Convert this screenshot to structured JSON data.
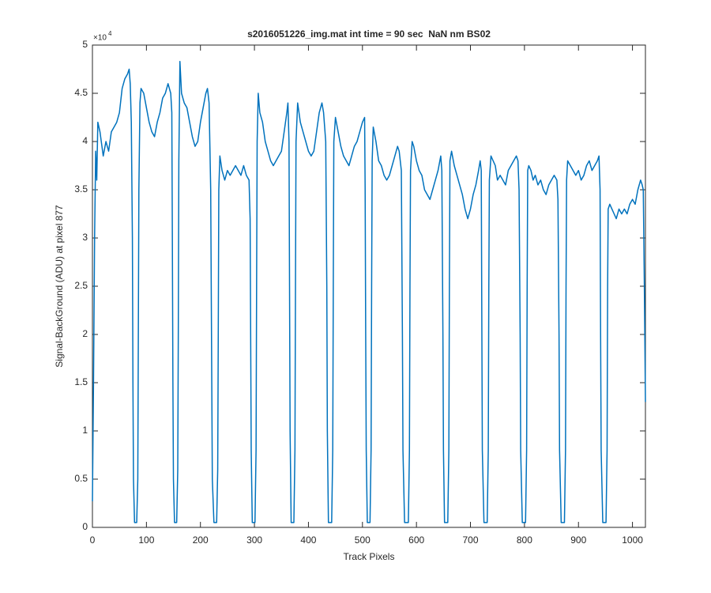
{
  "chart_data": {
    "type": "line",
    "title": "s2016051226_img.mat int time = 90 sec  NaN nm BS02",
    "x_label": "Track Pixels",
    "y_label": "Signal-BackGround (ADU) at pixel 877",
    "y_multiplier_base": "×10",
    "y_multiplier_exponent": "4",
    "xlim": [
      0,
      1024
    ],
    "ylim": [
      0,
      5
    ],
    "xticks": [
      0,
      100,
      200,
      300,
      400,
      500,
      600,
      700,
      800,
      900,
      1000
    ],
    "yticks": [
      0,
      0.5,
      1,
      1.5,
      2,
      2.5,
      3,
      3.5,
      4,
      4.5,
      5
    ],
    "grid": false,
    "series": [
      {
        "color": "#0072bd",
        "x": [
          0,
          2,
          4,
          6,
          8,
          10,
          14,
          20,
          25,
          30,
          35,
          40,
          45,
          50,
          55,
          60,
          65,
          68,
          70,
          72,
          74,
          75,
          76,
          78,
          82,
          84,
          85,
          86,
          88,
          90,
          95,
          100,
          105,
          110,
          115,
          120,
          125,
          130,
          135,
          140,
          145,
          147,
          148,
          149,
          150,
          152,
          156,
          158,
          159,
          160,
          162,
          165,
          170,
          175,
          180,
          185,
          190,
          195,
          200,
          205,
          210,
          213,
          216,
          219,
          221,
          222,
          225,
          230,
          232,
          233,
          234,
          236,
          240,
          245,
          250,
          255,
          260,
          265,
          270,
          275,
          280,
          285,
          290,
          292,
          293,
          294,
          296,
          301,
          303,
          304,
          305,
          307,
          310,
          315,
          320,
          325,
          330,
          335,
          340,
          345,
          350,
          355,
          360,
          362,
          364,
          365,
          366,
          368,
          373,
          375,
          376,
          377,
          380,
          385,
          390,
          395,
          400,
          405,
          410,
          415,
          420,
          425,
          428,
          432,
          434,
          435,
          437,
          443,
          445,
          446,
          447,
          450,
          455,
          460,
          465,
          470,
          475,
          480,
          485,
          490,
          495,
          500,
          504,
          505,
          506,
          507,
          509,
          514,
          516,
          517,
          518,
          520,
          525,
          530,
          535,
          540,
          545,
          550,
          555,
          560,
          565,
          568,
          572,
          574,
          575,
          578,
          585,
          587,
          588,
          589,
          592,
          595,
          600,
          605,
          610,
          615,
          620,
          625,
          630,
          635,
          640,
          645,
          647,
          649,
          650,
          652,
          658,
          660,
          661,
          662,
          665,
          670,
          675,
          680,
          685,
          690,
          695,
          700,
          705,
          710,
          715,
          718,
          720,
          721,
          722,
          725,
          731,
          733,
          734,
          735,
          738,
          742,
          746,
          750,
          755,
          760,
          765,
          770,
          775,
          780,
          785,
          788,
          790,
          792,
          793,
          796,
          802,
          804,
          805,
          806,
          808,
          812,
          816,
          820,
          825,
          830,
          835,
          840,
          845,
          850,
          855,
          860,
          862,
          864,
          865,
          868,
          874,
          876,
          877,
          878,
          880,
          885,
          890,
          895,
          900,
          905,
          910,
          915,
          920,
          925,
          930,
          935,
          938,
          940,
          941,
          942,
          945,
          951,
          953,
          954,
          955,
          958,
          962,
          966,
          970,
          975,
          980,
          985,
          990,
          995,
          1000,
          1005,
          1010,
          1015,
          1018,
          1020,
          1022,
          1024
        ],
        "values": [
          0.27,
          1.5,
          3.0,
          3.9,
          3.6,
          4.2,
          4.1,
          3.85,
          4.0,
          3.9,
          4.1,
          4.15,
          4.2,
          4.3,
          4.55,
          4.65,
          4.7,
          4.75,
          4.6,
          4.2,
          3.0,
          1.5,
          0.5,
          0.05,
          0.05,
          0.5,
          2.0,
          3.5,
          4.4,
          4.55,
          4.5,
          4.35,
          4.2,
          4.1,
          4.05,
          4.2,
          4.3,
          4.45,
          4.5,
          4.6,
          4.5,
          4.3,
          3.0,
          1.5,
          0.5,
          0.05,
          0.05,
          0.6,
          2.0,
          3.8,
          4.83,
          4.5,
          4.4,
          4.35,
          4.2,
          4.05,
          3.95,
          4.0,
          4.2,
          4.35,
          4.5,
          4.55,
          4.4,
          3.5,
          1.5,
          0.5,
          0.05,
          0.05,
          0.6,
          2.0,
          3.5,
          3.85,
          3.7,
          3.6,
          3.7,
          3.65,
          3.7,
          3.75,
          3.7,
          3.65,
          3.75,
          3.65,
          3.6,
          3.2,
          2.0,
          0.8,
          0.05,
          0.05,
          0.8,
          2.5,
          4.0,
          4.5,
          4.3,
          4.2,
          4.0,
          3.9,
          3.8,
          3.75,
          3.8,
          3.85,
          3.9,
          4.1,
          4.3,
          4.4,
          4.0,
          2.5,
          1.0,
          0.05,
          0.05,
          0.8,
          2.5,
          4.0,
          4.4,
          4.2,
          4.1,
          4.0,
          3.9,
          3.85,
          3.9,
          4.1,
          4.3,
          4.4,
          4.3,
          4.0,
          2.5,
          1.0,
          0.05,
          0.05,
          0.8,
          2.5,
          4.0,
          4.25,
          4.1,
          3.95,
          3.85,
          3.8,
          3.75,
          3.85,
          3.95,
          4.0,
          4.1,
          4.2,
          4.25,
          3.5,
          2.0,
          0.8,
          0.05,
          0.05,
          0.8,
          2.5,
          3.8,
          4.15,
          4.0,
          3.8,
          3.75,
          3.65,
          3.6,
          3.65,
          3.75,
          3.85,
          3.95,
          3.9,
          3.7,
          2.0,
          0.8,
          0.05,
          0.05,
          0.8,
          2.5,
          3.7,
          4.0,
          3.95,
          3.8,
          3.7,
          3.65,
          3.5,
          3.45,
          3.4,
          3.5,
          3.6,
          3.7,
          3.85,
          3.7,
          2.0,
          0.8,
          0.05,
          0.05,
          0.8,
          2.5,
          3.8,
          3.9,
          3.75,
          3.65,
          3.55,
          3.45,
          3.3,
          3.2,
          3.3,
          3.45,
          3.55,
          3.7,
          3.8,
          3.7,
          2.2,
          0.8,
          0.05,
          0.05,
          0.8,
          2.5,
          3.6,
          3.85,
          3.8,
          3.75,
          3.6,
          3.65,
          3.6,
          3.55,
          3.7,
          3.75,
          3.8,
          3.85,
          3.8,
          3.5,
          2.0,
          0.8,
          0.05,
          0.05,
          0.8,
          2.5,
          3.7,
          3.75,
          3.7,
          3.6,
          3.65,
          3.55,
          3.6,
          3.5,
          3.45,
          3.55,
          3.6,
          3.65,
          3.6,
          3.4,
          2.0,
          0.8,
          0.05,
          0.05,
          0.8,
          2.5,
          3.6,
          3.8,
          3.75,
          3.7,
          3.65,
          3.7,
          3.6,
          3.65,
          3.75,
          3.8,
          3.7,
          3.75,
          3.8,
          3.85,
          3.5,
          2.0,
          0.8,
          0.05,
          0.05,
          0.8,
          2.5,
          3.3,
          3.35,
          3.3,
          3.25,
          3.2,
          3.3,
          3.25,
          3.3,
          3.25,
          3.35,
          3.4,
          3.35,
          3.5,
          3.6,
          3.55,
          3.5,
          2.5,
          1.3
        ]
      }
    ]
  }
}
